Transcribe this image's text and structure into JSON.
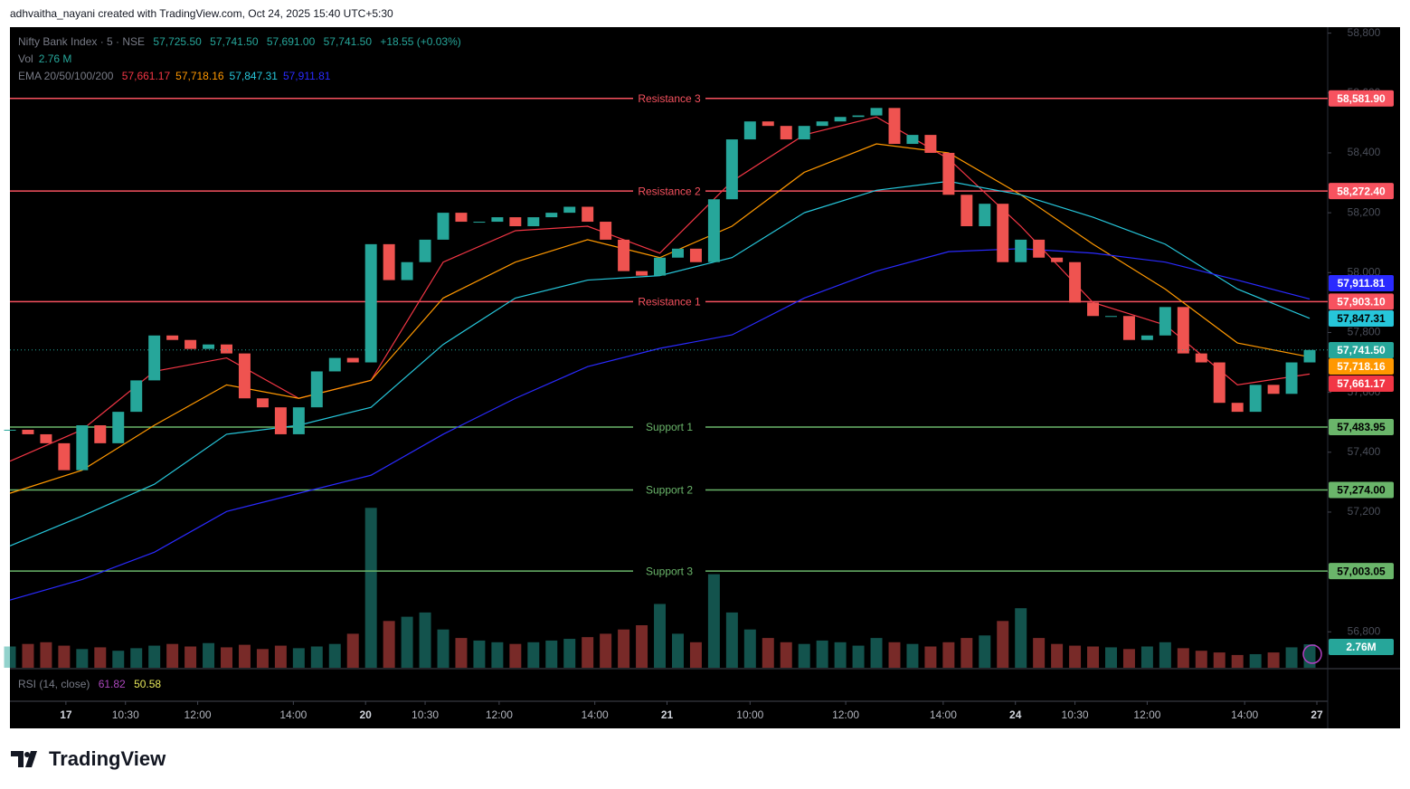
{
  "header": "adhvaitha_nayani created with TradingView.com, Oct 24, 2025 15:40 UTC+5:30",
  "legend": {
    "symbol": "Nifty Bank Index · 5 · NSE",
    "open": "57,725.50",
    "high": "57,741.50",
    "low": "57,691.00",
    "close": "57,741.50",
    "change": "+18.55 (+0.03%)",
    "vol_label": "Vol",
    "vol_value": "2.76 M",
    "ema_label": "EMA 20/50/100/200"
  },
  "rsi": {
    "label": "RSI (14, close)",
    "values": [
      "61.82",
      "50.58"
    ]
  },
  "logo": "TradingView",
  "chart_data": {
    "type": "candlestick",
    "xlim": [
      0,
      73
    ],
    "ylim": [
      56680,
      58820
    ],
    "yticks": [
      {
        "value": 56800,
        "label": "56,800"
      },
      {
        "value": 57000,
        "label": "57,000"
      },
      {
        "value": 57200,
        "label": "57,200"
      },
      {
        "value": 57400,
        "label": "57,400"
      },
      {
        "value": 57600,
        "label": "57,600"
      },
      {
        "value": 57800,
        "label": "57,800"
      },
      {
        "value": 58000,
        "label": "58,000"
      },
      {
        "value": 58200,
        "label": "58,200"
      },
      {
        "value": 58400,
        "label": "58,400"
      },
      {
        "value": 58600,
        "label": "58,600"
      },
      {
        "value": 58800,
        "label": "58,800"
      }
    ],
    "xticks": [
      {
        "value": 3.1,
        "label": "17"
      },
      {
        "value": 6.4,
        "label": "10:30"
      },
      {
        "value": 10.4,
        "label": "12:00"
      },
      {
        "value": 15.7,
        "label": "14:00"
      },
      {
        "value": 19.7,
        "label": "20"
      },
      {
        "value": 23.0,
        "label": "10:30"
      },
      {
        "value": 27.1,
        "label": "12:00"
      },
      {
        "value": 32.4,
        "label": "14:00"
      },
      {
        "value": 36.4,
        "label": "21"
      },
      {
        "value": 41.0,
        "label": "10:00"
      },
      {
        "value": 46.3,
        "label": "12:00"
      },
      {
        "value": 51.7,
        "label": "14:00"
      },
      {
        "value": 55.7,
        "label": "24"
      },
      {
        "value": 59.0,
        "label": "10:30"
      },
      {
        "value": 63.0,
        "label": "12:00"
      },
      {
        "value": 68.4,
        "label": "14:00"
      },
      {
        "value": 72.4,
        "label": "27"
      }
    ],
    "close": {
      "name": "Close",
      "up_color": "#26a69a",
      "down_color": "#ef5350",
      "values": [
        57475,
        57460,
        57430,
        57340,
        57490,
        57430,
        57535,
        57640,
        57790,
        57775,
        57745,
        57760,
        57730,
        57580,
        57550,
        57460,
        57550,
        57670,
        57715,
        57700,
        58095,
        57975,
        58035,
        58110,
        58200,
        58170,
        58170,
        58185,
        58155,
        58185,
        58200,
        58220,
        58170,
        58110,
        58005,
        57990,
        58050,
        58080,
        58035,
        58245,
        58445,
        58505,
        58490,
        58445,
        58490,
        58505,
        58520,
        58525,
        58550,
        58430,
        58460,
        58400,
        58260,
        58155,
        58230,
        58035,
        58110,
        58050,
        58035,
        57900,
        57855,
        57855,
        57775,
        57790,
        57885,
        57730,
        57700,
        57565,
        57535,
        57625,
        57595,
        57700,
        57741.5
      ],
      "last_label": "57,741.50"
    },
    "volume": {
      "ylim": [
        0,
        20
      ],
      "values": [
        2.5,
        2.8,
        3.0,
        2.6,
        2.2,
        2.4,
        2.0,
        2.3,
        2.6,
        2.8,
        2.5,
        2.9,
        2.4,
        2.7,
        2.2,
        2.6,
        2.3,
        2.5,
        2.8,
        4.0,
        18.8,
        5.5,
        6.0,
        6.5,
        4.5,
        3.5,
        3.2,
        3.0,
        2.8,
        3.0,
        3.2,
        3.4,
        3.6,
        4.0,
        4.5,
        5.0,
        7.5,
        4.0,
        3.0,
        11.0,
        6.5,
        4.5,
        3.5,
        3.0,
        2.8,
        3.2,
        3.0,
        2.6,
        3.5,
        3.0,
        2.8,
        2.5,
        3.0,
        3.5,
        3.8,
        5.5,
        7.0,
        3.5,
        2.8,
        2.6,
        2.5,
        2.4,
        2.2,
        2.5,
        3.0,
        2.3,
        2.0,
        1.8,
        1.5,
        1.6,
        1.8,
        2.4,
        2.76
      ],
      "last_label": "2.76M",
      "color": "#26a69a"
    },
    "ema_x": [
      0,
      4,
      8,
      12,
      16,
      20,
      24,
      28,
      32,
      36,
      40,
      44,
      48,
      52,
      56,
      60,
      64,
      68,
      72
    ],
    "series": [
      {
        "name": "EMA 20",
        "color": "#f23645",
        "values": [
          57370,
          57475,
          57670,
          57715,
          57580,
          57640,
          58035,
          58140,
          58155,
          58065,
          58305,
          58460,
          58520,
          58380,
          58155,
          57900,
          57825,
          57625,
          57661.17
        ],
        "last_label": "57,661.17"
      },
      {
        "name": "EMA 50",
        "color": "#ff9800",
        "values": [
          57263,
          57340,
          57490,
          57625,
          57580,
          57640,
          57915,
          58035,
          58110,
          58050,
          58155,
          58335,
          58430,
          58400,
          58260,
          58095,
          57945,
          57765,
          57718.16
        ],
        "last_label": "57,718.16"
      },
      {
        "name": "EMA 100",
        "color": "#26c6da",
        "values": [
          57087,
          57187,
          57293,
          57460,
          57490,
          57550,
          57760,
          57915,
          57975,
          57990,
          58050,
          58200,
          58275,
          58305,
          58260,
          58185,
          58095,
          57945,
          57847.31
        ],
        "last_label": "57,847.31"
      },
      {
        "name": "EMA 200",
        "color": "#2a2aff",
        "values": [
          56906,
          56975,
          57066,
          57202,
          57263,
          57323,
          57460,
          57580,
          57686,
          57747,
          57792,
          57915,
          58005,
          58070,
          58080,
          58065,
          58035,
          57975,
          57911.81
        ],
        "last_label": "57,911.81"
      }
    ],
    "levels": [
      {
        "name": "Resistance 3",
        "value": 58581.9,
        "label": "58,581.90",
        "color": "#f7525f"
      },
      {
        "name": "Resistance 2",
        "value": 58272.4,
        "label": "58,272.40",
        "color": "#f7525f"
      },
      {
        "name": "Resistance 1",
        "value": 57903.1,
        "label": "57,903.10",
        "color": "#f7525f"
      },
      {
        "name": "Support 1",
        "value": 57483.95,
        "label": "57,483.95",
        "color": "#6ab56a"
      },
      {
        "name": "Support 2",
        "value": 57274.0,
        "label": "57,274.00",
        "color": "#6ab56a"
      },
      {
        "name": "Support 3",
        "value": 57003.05,
        "label": "57,003.05",
        "color": "#6ab56a"
      }
    ]
  }
}
